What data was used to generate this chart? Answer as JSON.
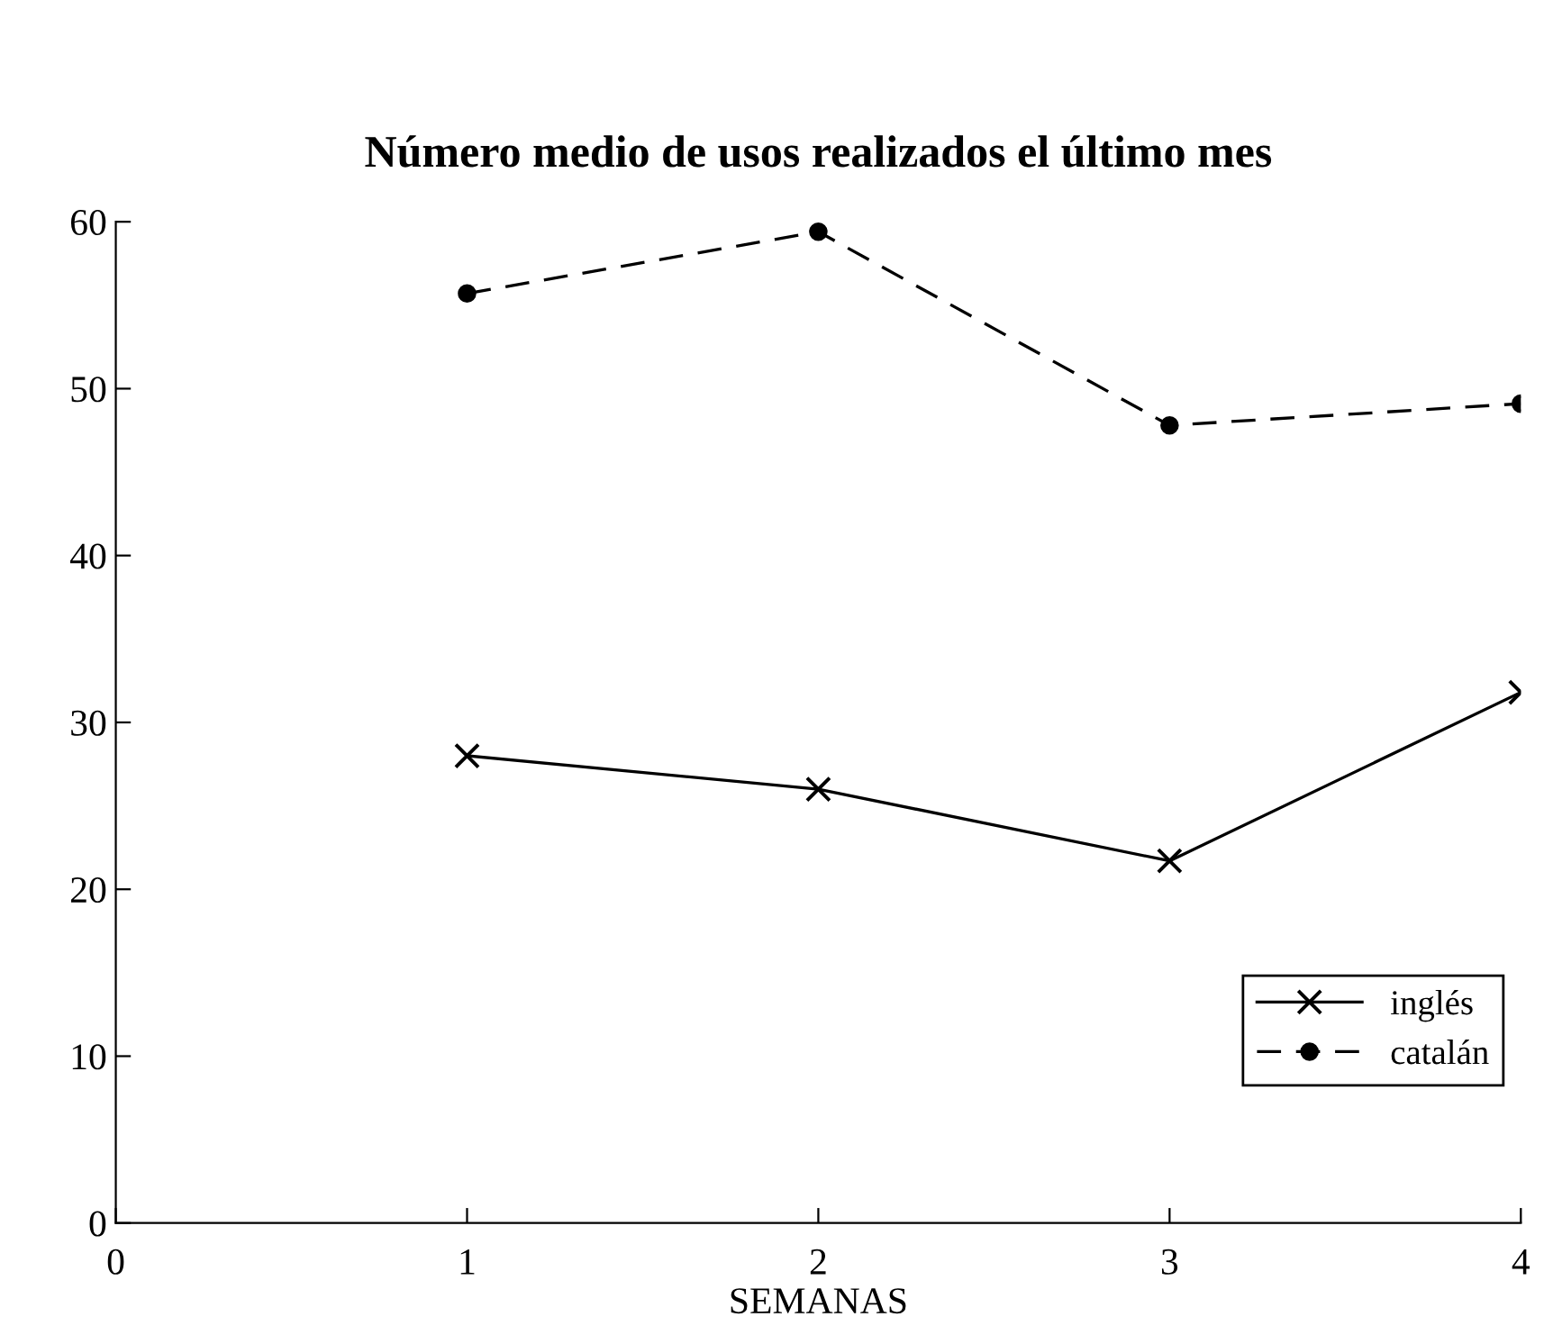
{
  "chart_data": {
    "type": "line",
    "title": "Número medio de usos realizados el último mes",
    "xlabel": "SEMANAS",
    "x": [
      1,
      2,
      3,
      4
    ],
    "series": [
      {
        "name": "inglés",
        "color": "#000000",
        "marker": "cross",
        "line_style": "solid",
        "values": [
          28.0,
          26.0,
          21.7,
          31.8
        ]
      },
      {
        "name": "catalán",
        "color": "#000000",
        "marker": "circle",
        "line_style": "dashed",
        "values": [
          55.7,
          59.4,
          47.8,
          49.1
        ]
      }
    ],
    "xlim": [
      0,
      4
    ],
    "ylim": [
      0,
      60
    ],
    "xticks": [
      0,
      1,
      2,
      3,
      4
    ],
    "yticks": [
      0,
      10,
      20,
      30,
      40,
      50,
      60
    ],
    "grid": false,
    "legend": "bottom right"
  }
}
